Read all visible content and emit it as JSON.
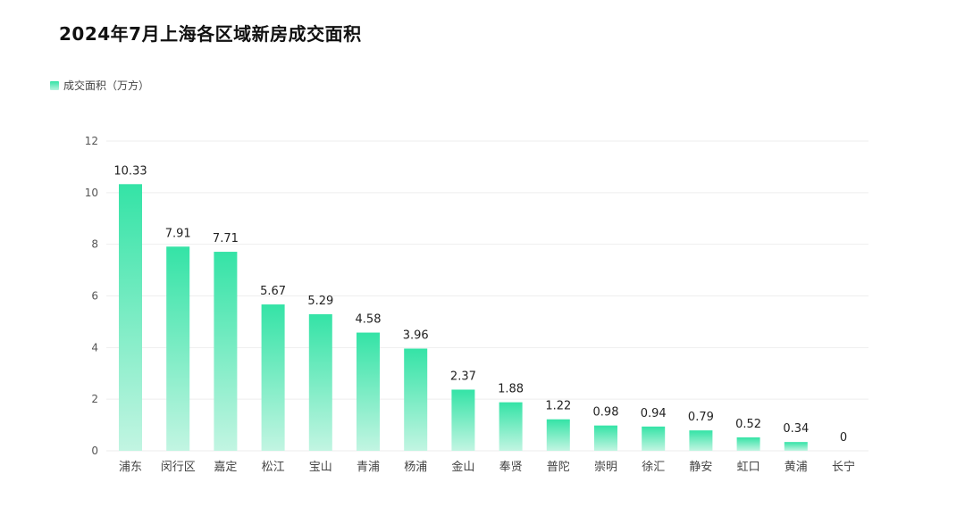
{
  "chart_data": {
    "type": "bar",
    "title": "2024年7月上海各区域新房成交面积",
    "categories": [
      "浦东",
      "闵行区",
      "嘉定",
      "松江",
      "宝山",
      "青浦",
      "杨浦",
      "金山",
      "奉贤",
      "普陀",
      "崇明",
      "徐汇",
      "静安",
      "虹口",
      "黄浦",
      "长宁"
    ],
    "series": [
      {
        "name": "成交面积（万方）",
        "values": [
          10.33,
          7.91,
          7.71,
          5.67,
          5.29,
          4.58,
          3.96,
          2.37,
          1.88,
          1.22,
          0.98,
          0.94,
          0.79,
          0.52,
          0.34,
          0
        ]
      }
    ],
    "value_labels": [
      "10.33",
      "7.91",
      "7.71",
      "5.67",
      "5.29",
      "4.58",
      "3.96",
      "2.37",
      "1.88",
      "1.22",
      "0.98",
      "0.94",
      "0.79",
      "0.52",
      "0.34",
      "0"
    ],
    "ylim": [
      0,
      12
    ],
    "yticks": [
      "0",
      "2",
      "4",
      "6",
      "8",
      "10",
      "12"
    ],
    "grid": true,
    "legend_position": "top-left",
    "colors": {
      "bar_top": "#34e3a6",
      "bar_bottom": "#c2f5e2",
      "grid": "#eeeeee"
    }
  }
}
